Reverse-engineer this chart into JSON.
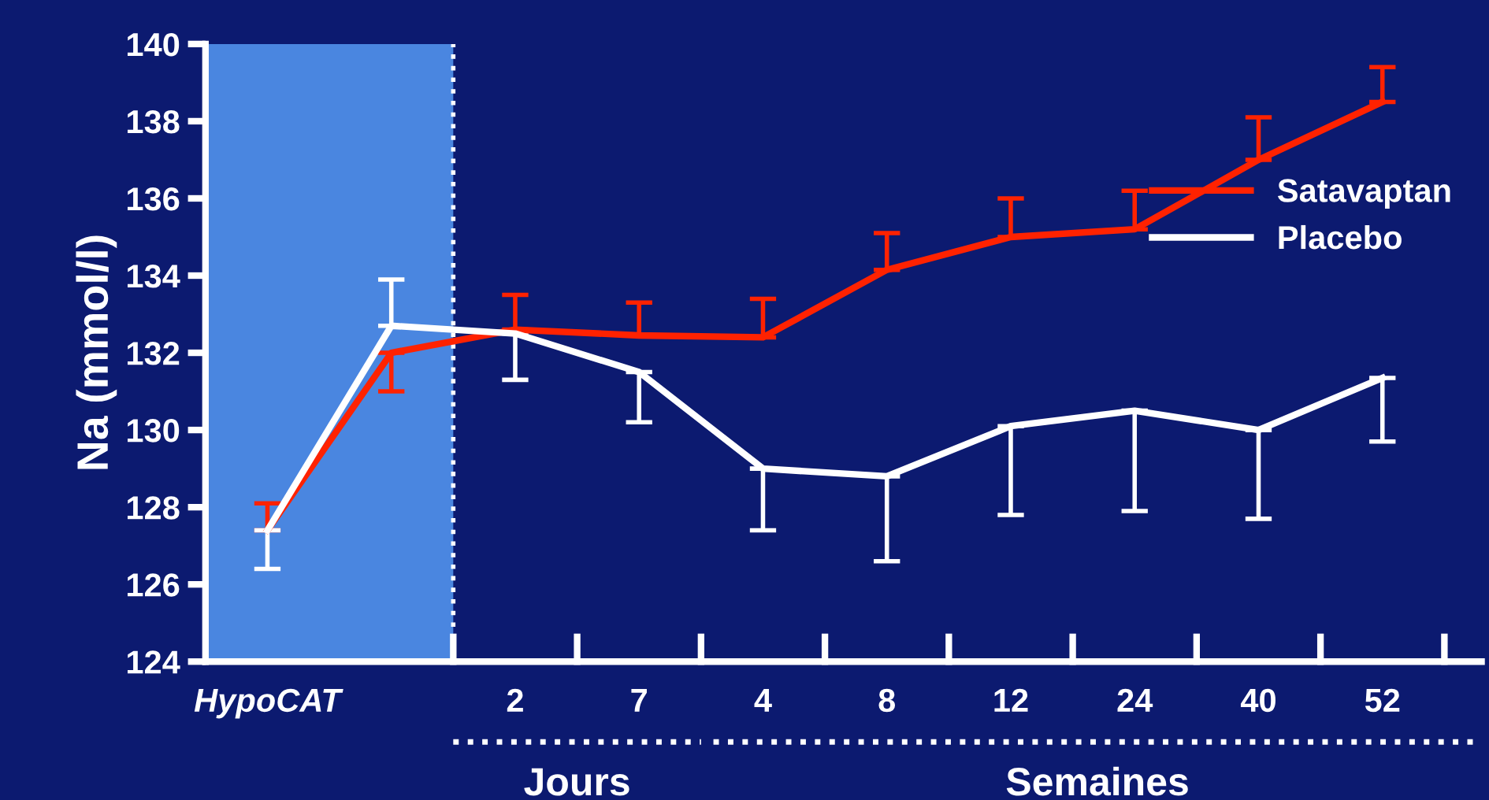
{
  "chart_data": {
    "type": "line",
    "ylabel": "Na (mmol/l)",
    "ylim": [
      124,
      140
    ],
    "yticks": [
      124,
      126,
      128,
      130,
      132,
      134,
      136,
      138,
      140
    ],
    "categories": [
      "HypoCAT",
      null,
      "2",
      "7",
      "4",
      "8",
      "12",
      "24",
      "40",
      "52"
    ],
    "series": [
      {
        "name": "Satavaptan",
        "color": "#ff2200",
        "values": [
          127.4,
          132.0,
          132.6,
          132.45,
          132.4,
          134.15,
          135.0,
          135.2,
          137.0,
          138.5
        ],
        "errors": [
          [
            127.4,
            128.1
          ],
          [
            131.0,
            132.0
          ],
          [
            132.6,
            133.5
          ],
          [
            132.45,
            133.3
          ],
          [
            132.4,
            133.4
          ],
          [
            134.15,
            135.1
          ],
          [
            135.0,
            136.0
          ],
          [
            135.2,
            136.2
          ],
          [
            137.0,
            138.1
          ],
          [
            138.5,
            139.4
          ]
        ]
      },
      {
        "name": "Placebo",
        "color": "#ffffff",
        "values": [
          127.4,
          132.7,
          132.5,
          131.5,
          129.0,
          128.8,
          130.1,
          130.5,
          130.0,
          131.35
        ],
        "errors": [
          [
            126.4,
            127.4
          ],
          [
            132.7,
            133.9
          ],
          [
            131.3,
            132.5
          ],
          [
            130.2,
            131.5
          ],
          [
            127.4,
            129.0
          ],
          [
            126.6,
            128.8
          ],
          [
            127.8,
            130.1
          ],
          [
            127.9,
            130.5
          ],
          [
            127.7,
            130.0
          ],
          [
            129.7,
            131.35
          ]
        ]
      }
    ],
    "bands": [
      {
        "axis": "x",
        "from": "HypoCAT",
        "to": "2",
        "color": "#4a86e0"
      }
    ],
    "annotations": [
      "Jours",
      "Semaines"
    ],
    "legend": "right",
    "grid": false,
    "marker": "none",
    "line_style": "solid"
  }
}
